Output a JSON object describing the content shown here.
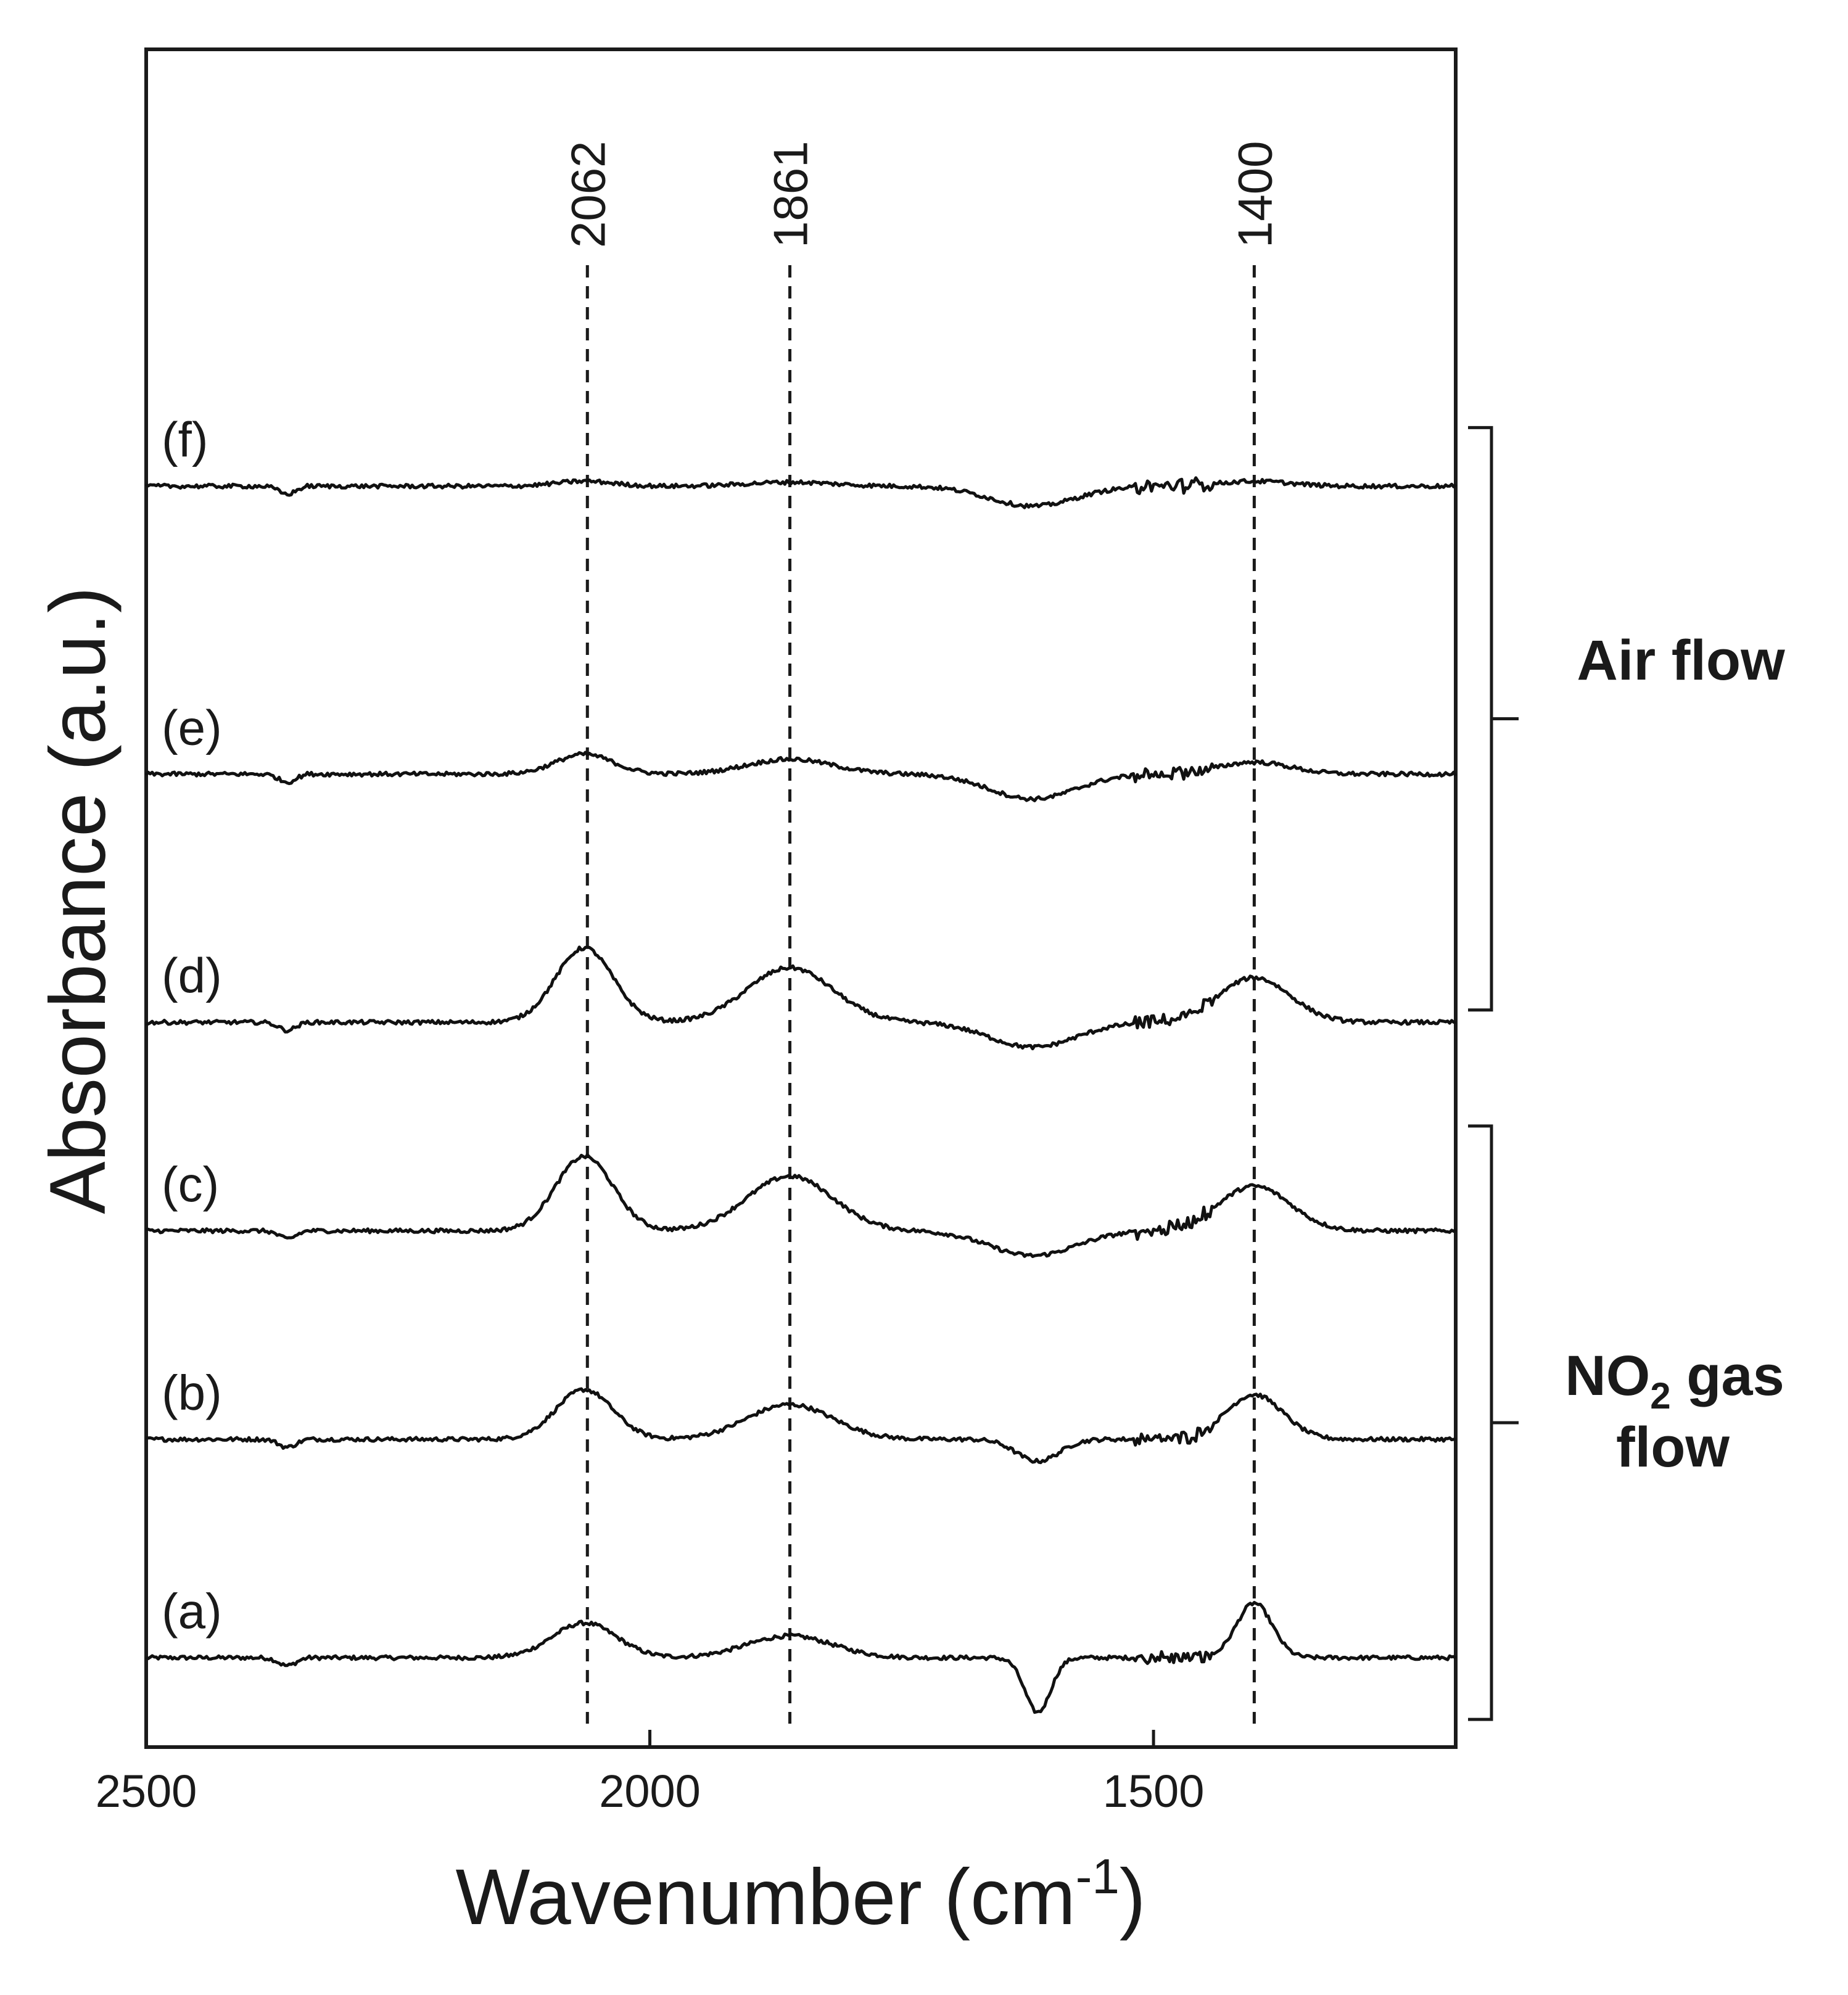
{
  "chart_data": {
    "type": "line",
    "xlabel_main": "Wavenumber (cm",
    "xlabel_sup": "-1",
    "xlabel_close": ")",
    "ylabel": "Absorbance (a.u.)",
    "xlim": [
      2500,
      1200
    ],
    "x_reversed": true,
    "x_ticks": [
      2500,
      2000,
      1500
    ],
    "x_tick_labels": [
      "2500",
      "2000",
      "1500"
    ],
    "y_ticks_labeled": false,
    "reference_lines": [
      {
        "x": 2062,
        "label": "2062"
      },
      {
        "x": 1861,
        "label": "1861"
      },
      {
        "x": 1400,
        "label": "1400"
      }
    ],
    "groups": [
      {
        "label": "Air flow",
        "members": [
          "(d)",
          "(e)",
          "(f)"
        ]
      },
      {
        "label_main": "NO",
        "label_sub": "2",
        "label_rest": " gas",
        "label_line2": "flow",
        "members": [
          "(a)",
          "(b)",
          "(c)"
        ]
      }
    ],
    "y_units": "arbitrary offset absorbance",
    "series": [
      {
        "name": "(a)",
        "offset": 0.0,
        "peaks": [
          {
            "x": 2065,
            "height": 0.35,
            "width": 45
          },
          {
            "x": 1861,
            "height": 0.22,
            "width": 60
          },
          {
            "x": 1400,
            "height": 0.55,
            "width": 25
          },
          {
            "x": 1615,
            "height": -0.55,
            "width": 18
          }
        ]
      },
      {
        "name": "(b)",
        "offset": 2.2,
        "peaks": [
          {
            "x": 2065,
            "height": 0.5,
            "width": 40
          },
          {
            "x": 1861,
            "height": 0.35,
            "width": 60
          },
          {
            "x": 1400,
            "height": 0.45,
            "width": 40
          },
          {
            "x": 1615,
            "height": -0.22,
            "width": 30
          }
        ]
      },
      {
        "name": "(c)",
        "offset": 4.3,
        "peaks": [
          {
            "x": 2065,
            "height": 0.75,
            "width": 40
          },
          {
            "x": 1861,
            "height": 0.55,
            "width": 60
          },
          {
            "x": 1400,
            "height": 0.45,
            "width": 50
          },
          {
            "x": 1620,
            "height": -0.25,
            "width": 60
          }
        ]
      },
      {
        "name": "(d)",
        "offset": 6.4,
        "peaks": [
          {
            "x": 2065,
            "height": 0.75,
            "width": 40
          },
          {
            "x": 1861,
            "height": 0.55,
            "width": 60
          },
          {
            "x": 1400,
            "height": 0.45,
            "width": 50
          },
          {
            "x": 1620,
            "height": -0.25,
            "width": 60
          }
        ]
      },
      {
        "name": "(e)",
        "offset": 8.9,
        "peaks": [
          {
            "x": 2065,
            "height": 0.2,
            "width": 40
          },
          {
            "x": 1861,
            "height": 0.15,
            "width": 60
          },
          {
            "x": 1400,
            "height": 0.12,
            "width": 50
          },
          {
            "x": 1620,
            "height": -0.25,
            "width": 60
          }
        ]
      },
      {
        "name": "(f)",
        "offset": 11.8,
        "peaks": [
          {
            "x": 2065,
            "height": 0.05,
            "width": 40
          },
          {
            "x": 1861,
            "height": 0.04,
            "width": 60
          },
          {
            "x": 1400,
            "height": 0.05,
            "width": 50
          },
          {
            "x": 1620,
            "height": -0.2,
            "width": 60
          }
        ]
      }
    ],
    "ylim": [
      -0.9,
      16.2
    ]
  }
}
